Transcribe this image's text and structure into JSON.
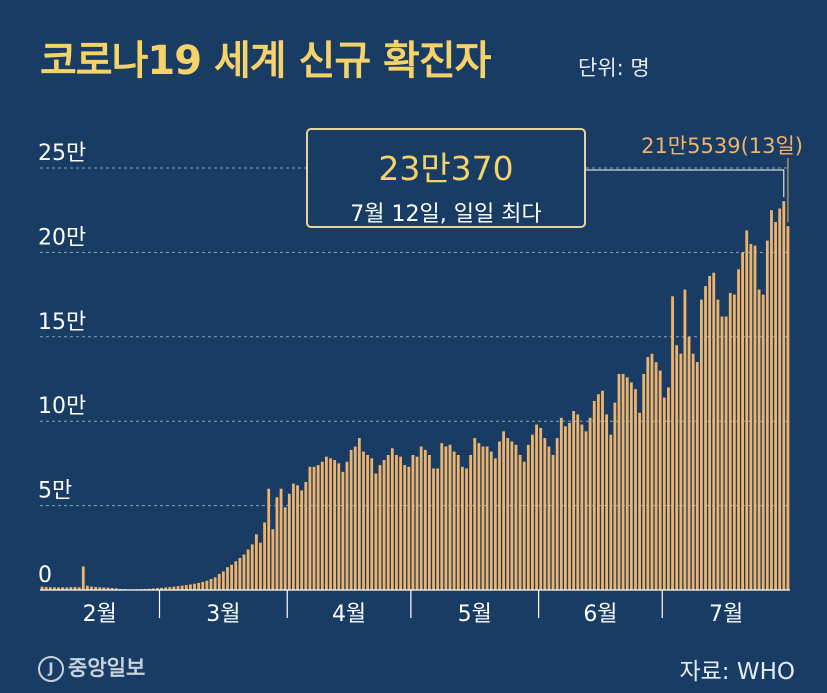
{
  "header": {
    "title": "코로나19 세계 신규 확진자",
    "unit": "단위: 명"
  },
  "callout": {
    "value": "23만370",
    "note": "7월 12일, 일일 최다"
  },
  "last_label": "21만5539(13일)",
  "footer": {
    "logo_mark": "J",
    "logo_text": "중앙일보",
    "source": "자료: WHO"
  },
  "colors": {
    "background": "#183c63",
    "bar": "#f0b36b",
    "title": "#f5d26a",
    "grid": "#8ea2b8"
  },
  "chart_data": {
    "type": "bar",
    "x_start": "2020-02-01",
    "x_end": "2020-07-13",
    "ylim": [
      0,
      250000
    ],
    "y_ticks": [
      {
        "value": 0,
        "label": "0"
      },
      {
        "value": 50000,
        "label": "5만"
      },
      {
        "value": 100000,
        "label": "10만"
      },
      {
        "value": 150000,
        "label": "15만"
      },
      {
        "value": 200000,
        "label": "20만"
      },
      {
        "value": 250000,
        "label": "25만"
      }
    ],
    "x_labels": [
      "2월",
      "3월",
      "4월",
      "5월",
      "6월",
      "7월"
    ],
    "grid": "horizontal dashed",
    "values": [
      2000,
      1800,
      1700,
      1600,
      1500,
      1600,
      1500,
      1700,
      1800,
      1600,
      14000,
      2500,
      2000,
      1800,
      1600,
      1500,
      1400,
      1200,
      1000,
      600,
      500,
      400,
      400,
      400,
      500,
      600,
      700,
      900,
      1100,
      1300,
      1500,
      1700,
      2000,
      2300,
      2600,
      2900,
      3300,
      3700,
      4200,
      4800,
      5500,
      6500,
      7500,
      9500,
      11000,
      13500,
      15000,
      17000,
      19000,
      21000,
      24000,
      27000,
      33000,
      28000,
      40000,
      60000,
      36000,
      55000,
      60000,
      49000,
      57000,
      63000,
      62000,
      59000,
      64000,
      73000,
      73000,
      74000,
      76000,
      79000,
      78000,
      77000,
      75000,
      70000,
      76000,
      83000,
      85000,
      90000,
      82000,
      80000,
      78000,
      69000,
      74000,
      77000,
      80000,
      84000,
      80000,
      79000,
      74000,
      73000,
      80000,
      79000,
      85000,
      83000,
      80000,
      72000,
      72000,
      87000,
      85000,
      86000,
      82000,
      80000,
      73000,
      72000,
      80000,
      90000,
      87000,
      85000,
      85000,
      82000,
      78000,
      88000,
      94000,
      90000,
      88000,
      86000,
      80000,
      76000,
      86000,
      92000,
      98000,
      96000,
      90000,
      85000,
      80000,
      90000,
      102000,
      97000,
      99000,
      106000,
      104000,
      98000,
      94000,
      102000,
      112000,
      116000,
      118000,
      104000,
      92000,
      111000,
      128000,
      128000,
      126000,
      123000,
      119000,
      105000,
      128000,
      138000,
      140000,
      135000,
      130000,
      114000,
      120000,
      174000,
      145000,
      140000,
      178000,
      150000,
      140000,
      135000,
      172000,
      180000,
      186000,
      188000,
      172000,
      162000,
      162000,
      176000,
      175000,
      190000,
      200000,
      213000,
      205000,
      204000,
      178000,
      175000,
      207000,
      225000,
      218000,
      226000,
      230370,
      215539
    ]
  }
}
